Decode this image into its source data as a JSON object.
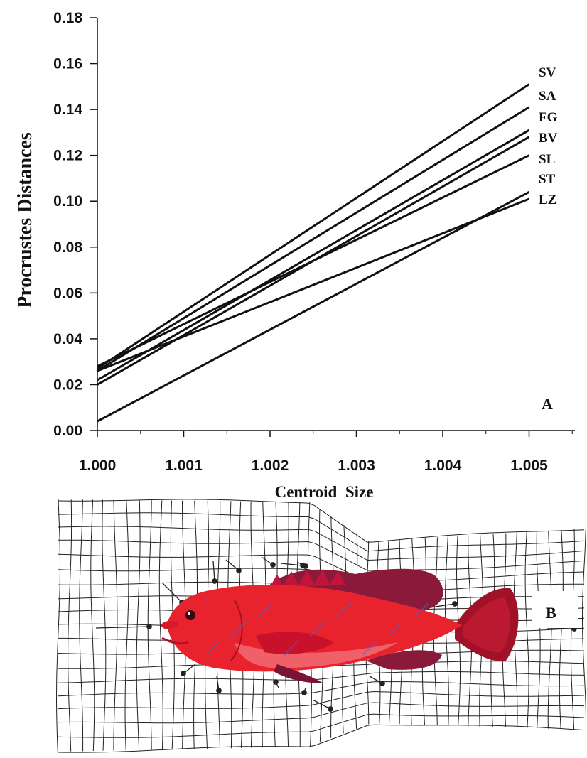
{
  "chart_data": {
    "type": "line",
    "xlabel": "Centroid  Size",
    "ylabel": "Procrustes Distances",
    "xlim": [
      1.0,
      1.0055
    ],
    "ylim": [
      0.0,
      0.18
    ],
    "x_ticks": [
      "1.000",
      "1.001",
      "1.002",
      "1.003",
      "1.004",
      "1.005"
    ],
    "y_ticks": [
      "0.00",
      "0.02",
      "0.04",
      "0.06",
      "0.08",
      "0.10",
      "0.12",
      "0.14",
      "0.16",
      "0.18"
    ],
    "grid": false,
    "legend": "direct labels at right end of lines",
    "line_color": "#111111",
    "series": [
      {
        "name": "SV",
        "x": [
          1.0,
          1.005
        ],
        "values": [
          0.027,
          0.151
        ]
      },
      {
        "name": "SA",
        "x": [
          1.0,
          1.005
        ],
        "values": [
          0.026,
          0.141
        ]
      },
      {
        "name": "FG",
        "x": [
          1.0,
          1.005
        ],
        "values": [
          0.022,
          0.131
        ]
      },
      {
        "name": "BV",
        "x": [
          1.0,
          1.005
        ],
        "values": [
          0.02,
          0.128
        ]
      },
      {
        "name": "SL",
        "x": [
          1.0,
          1.005
        ],
        "values": [
          0.028,
          0.12
        ]
      },
      {
        "name": "ST",
        "x": [
          1.0,
          1.005
        ],
        "values": [
          0.004,
          0.104
        ]
      },
      {
        "name": "LZ",
        "x": [
          1.0,
          1.005
        ],
        "values": [
          0.026,
          0.101
        ]
      }
    ]
  },
  "panels": {
    "a_label": "A",
    "b_label": "B"
  },
  "colors": {
    "fish_body": "#e8232e",
    "fish_dark": "#a11228",
    "fish_fin": "#8b1a3a",
    "grid_line": "#222222"
  },
  "icons": {
    "fish": "coral-grouper-photo",
    "deformation_grid": "thin-plate-spline-grid"
  }
}
